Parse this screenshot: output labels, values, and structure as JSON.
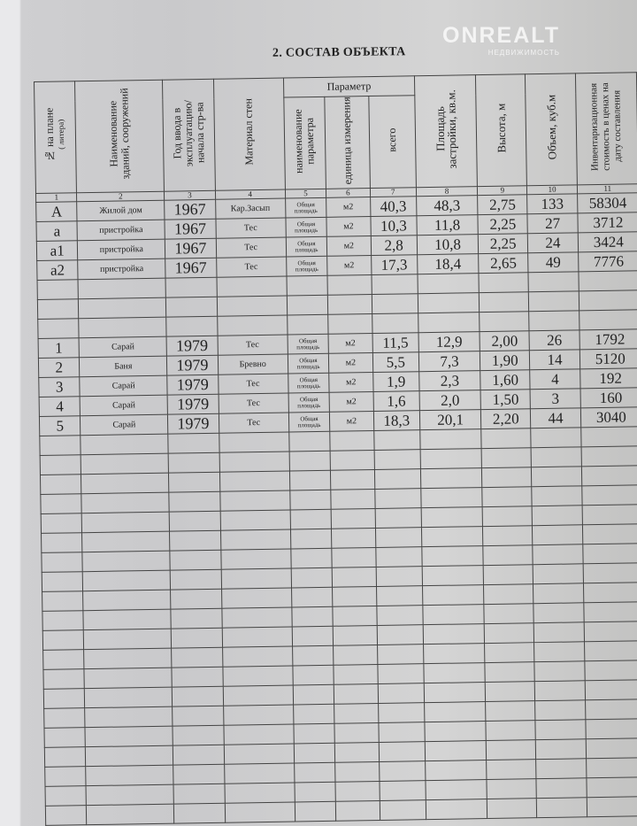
{
  "watermark": {
    "brand": "ONREALT",
    "tagline": "НЕДВИЖИМОСТЬ"
  },
  "title": "2. СОСТАВ ОБЪЕКТА",
  "headers": {
    "c1": "№ на плане",
    "c1_sub": "( литера)",
    "c2": "Наименование зданий, сооружений",
    "c3": "Год ввода в эксплуатацию/ начала стр-ва",
    "c4": "Материал стен",
    "param": "Параметр",
    "c5": "наименование параметра",
    "c6": "единица измерения",
    "c7": "всего",
    "c8": "Площадь застройки, кв.м.",
    "c9": "Высота, м",
    "c10": "Объем, куб.м",
    "c11": "Инвентаризационная стоимость в ценах на дату составления"
  },
  "col_numbers": [
    "1",
    "2",
    "3",
    "4",
    "5",
    "6",
    "7",
    "8",
    "9",
    "10",
    "11"
  ],
  "rows_main": [
    {
      "n": "A",
      "name": "Жилой дом",
      "year": "1967",
      "wall": "Кар.Засып",
      "param": "Общая площадь",
      "unit": "м2",
      "total": "40,3",
      "area": "48,3",
      "height": "2,75",
      "vol": "133",
      "cost": "58304"
    },
    {
      "n": "a",
      "name": "пристройка",
      "year": "1967",
      "wall": "Тес",
      "param": "Общая площадь",
      "unit": "м2",
      "total": "10,3",
      "area": "11,8",
      "height": "2,25",
      "vol": "27",
      "cost": "3712"
    },
    {
      "n": "a1",
      "name": "пристройка",
      "year": "1967",
      "wall": "Тес",
      "param": "Общая площадь",
      "unit": "м2",
      "total": "2,8",
      "area": "10,8",
      "height": "2,25",
      "vol": "24",
      "cost": "3424"
    },
    {
      "n": "a2",
      "name": "пристройка",
      "year": "1967",
      "wall": "Тес",
      "param": "Общая площадь",
      "unit": "м2",
      "total": "17,3",
      "area": "18,4",
      "height": "2,65",
      "vol": "49",
      "cost": "7776"
    }
  ],
  "rows_aux": [
    {
      "n": "1",
      "name": "Сарай",
      "year": "1979",
      "wall": "Тес",
      "param": "Общая площадь",
      "unit": "м2",
      "total": "11,5",
      "area": "12,9",
      "height": "2,00",
      "vol": "26",
      "cost": "1792"
    },
    {
      "n": "2",
      "name": "Баня",
      "year": "1979",
      "wall": "Бревно",
      "param": "Общая площадь",
      "unit": "м2",
      "total": "5,5",
      "area": "7,3",
      "height": "1,90",
      "vol": "14",
      "cost": "5120"
    },
    {
      "n": "3",
      "name": "Сарай",
      "year": "1979",
      "wall": "Тес",
      "param": "Общая площадь",
      "unit": "м2",
      "total": "1,9",
      "area": "2,3",
      "height": "1,60",
      "vol": "4",
      "cost": "192"
    },
    {
      "n": "4",
      "name": "Сарай",
      "year": "1979",
      "wall": "Тес",
      "param": "Общая площадь",
      "unit": "м2",
      "total": "1,6",
      "area": "2,0",
      "height": "1,50",
      "vol": "3",
      "cost": "160"
    },
    {
      "n": "5",
      "name": "Сарай",
      "year": "1979",
      "wall": "Тес",
      "param": "Общая площадь",
      "unit": "м2",
      "total": "18,3",
      "area": "20,1",
      "height": "2,20",
      "vol": "44",
      "cost": "3040"
    }
  ]
}
